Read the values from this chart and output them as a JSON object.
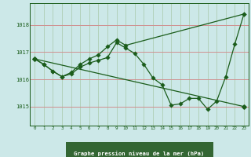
{
  "title": "Graphe pression niveau de la mer (hPa)",
  "background_color": "#cce8e8",
  "grid_color_h": "#d09090",
  "grid_color_v": "#a8c8a8",
  "line_color": "#1a5c1a",
  "xlabel_bg": "#336633",
  "xlabel_color": "#ffffff",
  "x_ticks": [
    0,
    1,
    2,
    3,
    4,
    5,
    6,
    7,
    8,
    9,
    10,
    11,
    12,
    13,
    14,
    15,
    16,
    17,
    18,
    19,
    20,
    21,
    22,
    23
  ],
  "y_ticks": [
    1015,
    1016,
    1017,
    1018
  ],
  "ylim": [
    1014.3,
    1018.8
  ],
  "xlim": [
    -0.5,
    23.5
  ],
  "series1_x": [
    0,
    1,
    2,
    3,
    4,
    5,
    6,
    7,
    8,
    9,
    10,
    11,
    12,
    13,
    14,
    15,
    16,
    17,
    18,
    19,
    20,
    21,
    22,
    23
  ],
  "series1_y": [
    1016.75,
    1016.55,
    1016.3,
    1016.1,
    1016.2,
    1016.45,
    1016.6,
    1016.7,
    1016.8,
    1017.35,
    1017.15,
    1016.95,
    1016.55,
    1016.05,
    1015.8,
    1015.05,
    1015.1,
    1015.3,
    1015.3,
    1014.9,
    1015.2,
    1016.1,
    1017.3,
    1018.4
  ],
  "series2_x": [
    0,
    1,
    2,
    3,
    4,
    5,
    6,
    7,
    8,
    9,
    10,
    23
  ],
  "series2_y": [
    1016.75,
    1016.55,
    1016.3,
    1016.1,
    1016.25,
    1016.55,
    1016.75,
    1016.9,
    1017.2,
    1017.45,
    1017.25,
    1018.4
  ],
  "series3_x": [
    0,
    23
  ],
  "series3_y": [
    1016.75,
    1015.0
  ]
}
